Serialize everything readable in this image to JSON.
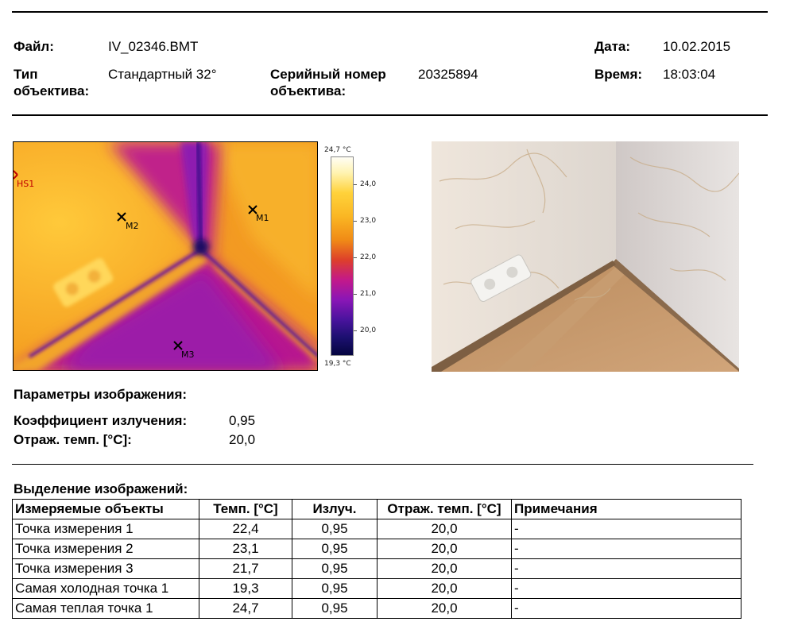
{
  "header": {
    "file_label": "Файл:",
    "file_value": "IV_02346.BMT",
    "date_label": "Дата:",
    "date_value": "10.02.2015",
    "lens_type_label_1": "Тип",
    "lens_type_label_2": "объектива:",
    "lens_type_value": "Стандартный 32°",
    "serial_label_1": "Серийный номер",
    "serial_label_2": "объектива:",
    "serial_value": "20325894",
    "time_label": "Время:",
    "time_value": "18:03:04"
  },
  "thermogram": {
    "markers": [
      "HS1",
      "M1",
      "M2",
      "M3"
    ],
    "scale": {
      "max": "24,7 °C",
      "min": "19,3 °C",
      "ticks": [
        "24,0",
        "23,0",
        "22,0",
        "21,0",
        "20,0"
      ]
    }
  },
  "image_params": {
    "heading": "Параметры изображения:",
    "emissivity_label": "Коэффициент излучения:",
    "emissivity_value": "0,95",
    "refl_label": "Отраж. темп. [°C]:",
    "refl_value": "20,0"
  },
  "markers_section": {
    "heading": "Выделение изображений:",
    "columns": [
      "Измеряемые объекты",
      "Темп. [°C]",
      "Излуч.",
      "Отраж. темп. [°C]",
      "Примечания"
    ],
    "rows": [
      [
        "Точка измерения 1",
        "22,4",
        "0,95",
        "20,0",
        "-"
      ],
      [
        "Точка измерения 2",
        "23,1",
        "0,95",
        "20,0",
        "-"
      ],
      [
        "Точка измерения 3",
        "21,7",
        "0,95",
        "20,0",
        "-"
      ],
      [
        "Самая холодная точка 1",
        "19,3",
        "0,95",
        "20,0",
        "-"
      ],
      [
        "Самая теплая точка 1",
        "24,7",
        "0,95",
        "20,0",
        "-"
      ]
    ]
  }
}
